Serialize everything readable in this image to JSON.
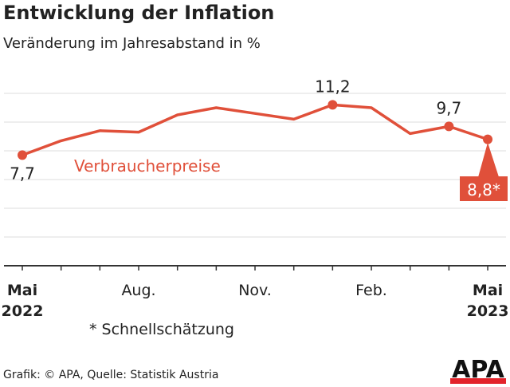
{
  "title": "Entwicklung der Inflation",
  "subtitle": "Veränderung im Jahresabstand in %",
  "note": "* Schnellschätzung",
  "footer": "Grafik: © APA, Quelle: Statistik Austria",
  "logo": "APA",
  "colors": {
    "series": "#e0503a",
    "grid": "#dddddd",
    "axis": "#333333"
  },
  "chart_data": {
    "type": "line",
    "title": "Entwicklung der Inflation",
    "subtitle": "Veränderung im Jahresabstand in %",
    "x": [
      "2022-05",
      "2022-06",
      "2022-07",
      "2022-08",
      "2022-09",
      "2022-10",
      "2022-11",
      "2022-12",
      "2023-01",
      "2023-02",
      "2023-03",
      "2023-04",
      "2023-05"
    ],
    "x_tick_labels": [
      {
        "month": "Mai",
        "year": "2022"
      },
      {
        "month": "Aug."
      },
      {
        "month": "Nov."
      },
      {
        "month": "Feb."
      },
      {
        "month": "Mai",
        "year": "2023"
      }
    ],
    "series": [
      {
        "name": "Verbraucherpreise",
        "values": [
          7.7,
          8.7,
          9.4,
          9.3,
          10.5,
          11.0,
          10.6,
          10.2,
          11.2,
          11.0,
          9.2,
          9.7,
          8.8
        ]
      }
    ],
    "data_labels": [
      {
        "index": 0,
        "text": "7,7"
      },
      {
        "index": 8,
        "text": "11,2"
      },
      {
        "index": 11,
        "text": "9,7"
      },
      {
        "index": 12,
        "text": "8,8*",
        "highlight": true
      }
    ],
    "ylim": [
      0,
      12
    ],
    "grid": true,
    "y_tick_labels": false
  }
}
